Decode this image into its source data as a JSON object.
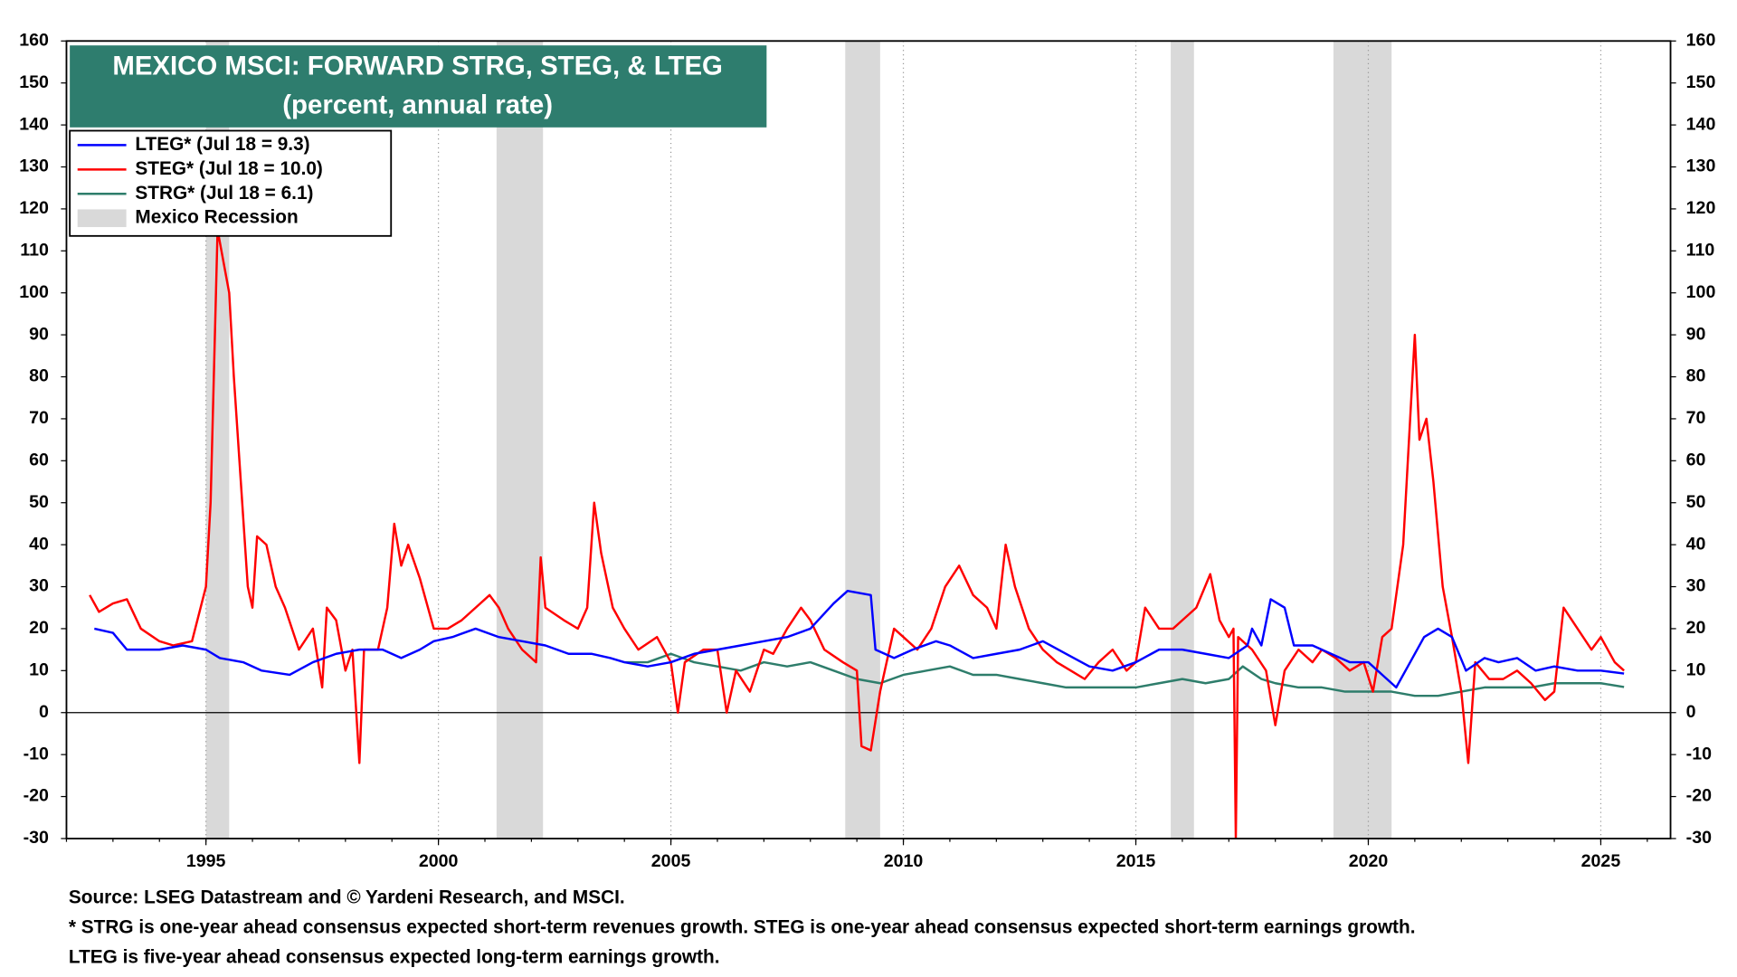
{
  "chart_data": {
    "type": "line",
    "title": "MEXICO MSCI: FORWARD STRG, STEG, & LTEG",
    "subtitle": "(percent, annual rate)",
    "annotations": [
      "Source: LSEG Datastream and © Yardeni Research, and MSCI.",
      "* STRG is one-year ahead consensus expected short-term revenues growth. STEG is one-year ahead consensus expected short-term earnings growth.",
      "LTEG is five-year ahead consensus expected long-term earnings growth."
    ],
    "xlim": [
      1992,
      2026.5
    ],
    "xticks": [
      1995,
      2000,
      2005,
      2010,
      2015,
      2020,
      2025
    ],
    "ylim": [
      -30,
      160
    ],
    "yticks": [
      -30,
      -20,
      -10,
      0,
      10,
      20,
      30,
      40,
      50,
      60,
      70,
      80,
      90,
      100,
      110,
      120,
      130,
      140,
      150,
      160
    ],
    "y2lim": [
      -30,
      160
    ],
    "y2ticks": [
      -30,
      -20,
      -10,
      0,
      10,
      20,
      30,
      40,
      50,
      60,
      70,
      80,
      90,
      100,
      110,
      120,
      130,
      140,
      150,
      160
    ],
    "grid": "x",
    "legend": "upper left",
    "recession_name": "Mexico Recession",
    "recession_color": "#d9d9d9",
    "recessions": [
      [
        1995.0,
        1995.5
      ],
      [
        2001.25,
        2002.25
      ],
      [
        2008.75,
        2009.5
      ],
      [
        2015.75,
        2016.25
      ],
      [
        2019.25,
        2020.5
      ]
    ],
    "series": [
      {
        "name": "LTEG* (Jul 18 = 9.3)",
        "color": "#0000ff",
        "x": [
          1992.6,
          1993.0,
          1993.3,
          1994.0,
          1994.5,
          1995.0,
          1995.3,
          1995.8,
          1996.2,
          1996.8,
          1997.3,
          1997.8,
          1998.3,
          1998.8,
          1999.2,
          1999.6,
          1999.9,
          2000.3,
          2000.8,
          2001.3,
          2001.8,
          2002.3,
          2002.8,
          2003.3,
          2003.7,
          2004.0,
          2004.5,
          2005.0,
          2005.5,
          2006.0,
          2006.5,
          2007.0,
          2007.5,
          2008.0,
          2008.5,
          2008.8,
          2009.3,
          2009.4,
          2009.8,
          2010.2,
          2010.7,
          2011.0,
          2011.5,
          2012.0,
          2012.5,
          2013.0,
          2013.5,
          2014.0,
          2014.5,
          2015.0,
          2015.5,
          2016.0,
          2016.5,
          2017.0,
          2017.4,
          2017.5,
          2017.7,
          2017.9,
          2018.2,
          2018.4,
          2018.8,
          2019.2,
          2019.6,
          2020.0,
          2020.3,
          2020.6,
          2020.9,
          2021.2,
          2021.5,
          2021.8,
          2022.1,
          2022.5,
          2022.8,
          2023.2,
          2023.6,
          2024.0,
          2024.5,
          2025.0,
          2025.5
        ],
        "values": [
          20,
          19,
          15,
          15,
          16,
          15,
          13,
          12,
          10,
          9,
          12,
          14,
          15,
          15,
          13,
          15,
          17,
          18,
          20,
          18,
          17,
          16,
          14,
          14,
          13,
          12,
          11,
          12,
          14,
          15,
          16,
          17,
          18,
          20,
          26,
          29,
          28,
          15,
          13,
          15,
          17,
          16,
          13,
          14,
          15,
          17,
          14,
          11,
          10,
          12,
          15,
          15,
          14,
          13,
          16,
          20,
          16,
          27,
          25,
          16,
          16,
          14,
          12,
          12,
          9,
          6,
          12,
          18,
          20,
          18,
          10,
          13,
          12,
          13,
          10,
          11,
          10,
          10,
          9.3
        ]
      },
      {
        "name": "STEG* (Jul 18 = 10.0)",
        "color": "#ff0000",
        "x": [
          1992.5,
          1992.7,
          1993.0,
          1993.3,
          1993.6,
          1994.0,
          1994.3,
          1994.7,
          1995.0,
          1995.1,
          1995.25,
          1995.5,
          1995.6,
          1995.75,
          1995.9,
          1996.0,
          1996.1,
          1996.3,
          1996.5,
          1996.7,
          1997.0,
          1997.3,
          1997.5,
          1997.6,
          1997.8,
          1998.0,
          1998.15,
          1998.3,
          1998.4,
          1998.7,
          1998.9,
          1999.05,
          1999.2,
          1999.35,
          1999.6,
          1999.9,
          2000.2,
          2000.5,
          2000.8,
          2001.1,
          2001.3,
          2001.5,
          2001.8,
          2002.1,
          2002.2,
          2002.3,
          2002.7,
          2003.0,
          2003.2,
          2003.35,
          2003.5,
          2003.75,
          2004.0,
          2004.3,
          2004.7,
          2005.0,
          2005.15,
          2005.3,
          2005.7,
          2006.0,
          2006.2,
          2006.4,
          2006.7,
          2007.0,
          2007.2,
          2007.5,
          2007.8,
          2008.0,
          2008.3,
          2008.7,
          2009.0,
          2009.1,
          2009.3,
          2009.5,
          2009.8,
          2010.0,
          2010.3,
          2010.6,
          2010.9,
          2011.2,
          2011.5,
          2011.8,
          2012.0,
          2012.2,
          2012.4,
          2012.7,
          2013.0,
          2013.3,
          2013.6,
          2013.9,
          2014.2,
          2014.5,
          2014.8,
          2015.0,
          2015.2,
          2015.5,
          2015.8,
          2016.0,
          2016.3,
          2016.6,
          2016.8,
          2017.0,
          2017.1,
          2017.15,
          2017.2,
          2017.5,
          2017.8,
          2018.0,
          2018.2,
          2018.5,
          2018.8,
          2019.0,
          2019.3,
          2019.6,
          2019.9,
          2020.1,
          2020.3,
          2020.5,
          2020.75,
          2020.95,
          2021.0,
          2021.1,
          2021.25,
          2021.4,
          2021.6,
          2021.8,
          2022.0,
          2022.15,
          2022.3,
          2022.6,
          2022.9,
          2023.2,
          2023.5,
          2023.8,
          2024.0,
          2024.2,
          2024.5,
          2024.8,
          2025.0,
          2025.3,
          2025.5
        ],
        "values": [
          28,
          24,
          26,
          27,
          20,
          17,
          16,
          17,
          30,
          50,
          115,
          100,
          80,
          55,
          30,
          25,
          42,
          40,
          30,
          25,
          15,
          20,
          6,
          25,
          22,
          10,
          15,
          -12,
          15,
          15,
          25,
          45,
          35,
          40,
          32,
          20,
          20,
          22,
          25,
          28,
          25,
          20,
          15,
          12,
          37,
          25,
          22,
          20,
          25,
          50,
          38,
          25,
          20,
          15,
          18,
          12,
          0,
          12,
          15,
          15,
          0,
          10,
          5,
          15,
          14,
          20,
          25,
          22,
          15,
          12,
          10,
          -8,
          -9,
          5,
          20,
          18,
          15,
          20,
          30,
          35,
          28,
          25,
          20,
          40,
          30,
          20,
          15,
          12,
          10,
          8,
          12,
          15,
          10,
          12,
          25,
          20,
          20,
          22,
          25,
          33,
          22,
          18,
          20,
          -30,
          18,
          15,
          10,
          -3,
          10,
          15,
          12,
          15,
          13,
          10,
          12,
          5,
          18,
          20,
          40,
          80,
          90,
          65,
          70,
          55,
          30,
          18,
          5,
          -12,
          12,
          8,
          8,
          10,
          7,
          3,
          5,
          25,
          20,
          15,
          18,
          12,
          10
        ]
      },
      {
        "name": "STRG* (Jul 18 = 6.1)",
        "color": "#2e7d6b",
        "x": [
          2004.0,
          2004.5,
          2005.0,
          2005.5,
          2006.0,
          2006.5,
          2007.0,
          2007.5,
          2008.0,
          2008.5,
          2009.0,
          2009.5,
          2010.0,
          2010.5,
          2011.0,
          2011.5,
          2012.0,
          2012.5,
          2013.0,
          2013.5,
          2014.0,
          2014.5,
          2015.0,
          2015.5,
          2016.0,
          2016.5,
          2017.0,
          2017.3,
          2017.7,
          2018.0,
          2018.5,
          2019.0,
          2019.5,
          2020.0,
          2020.5,
          2021.0,
          2021.5,
          2022.0,
          2022.5,
          2023.0,
          2023.5,
          2024.0,
          2024.5,
          2025.0,
          2025.5
        ],
        "values": [
          12,
          12,
          14,
          12,
          11,
          10,
          12,
          11,
          12,
          10,
          8,
          7,
          9,
          10,
          11,
          9,
          9,
          8,
          7,
          6,
          6,
          6,
          6,
          7,
          8,
          7,
          8,
          11,
          8,
          7,
          6,
          6,
          5,
          5,
          5,
          4,
          4,
          5,
          6,
          6,
          6,
          7,
          7,
          7,
          6.1
        ]
      }
    ]
  }
}
